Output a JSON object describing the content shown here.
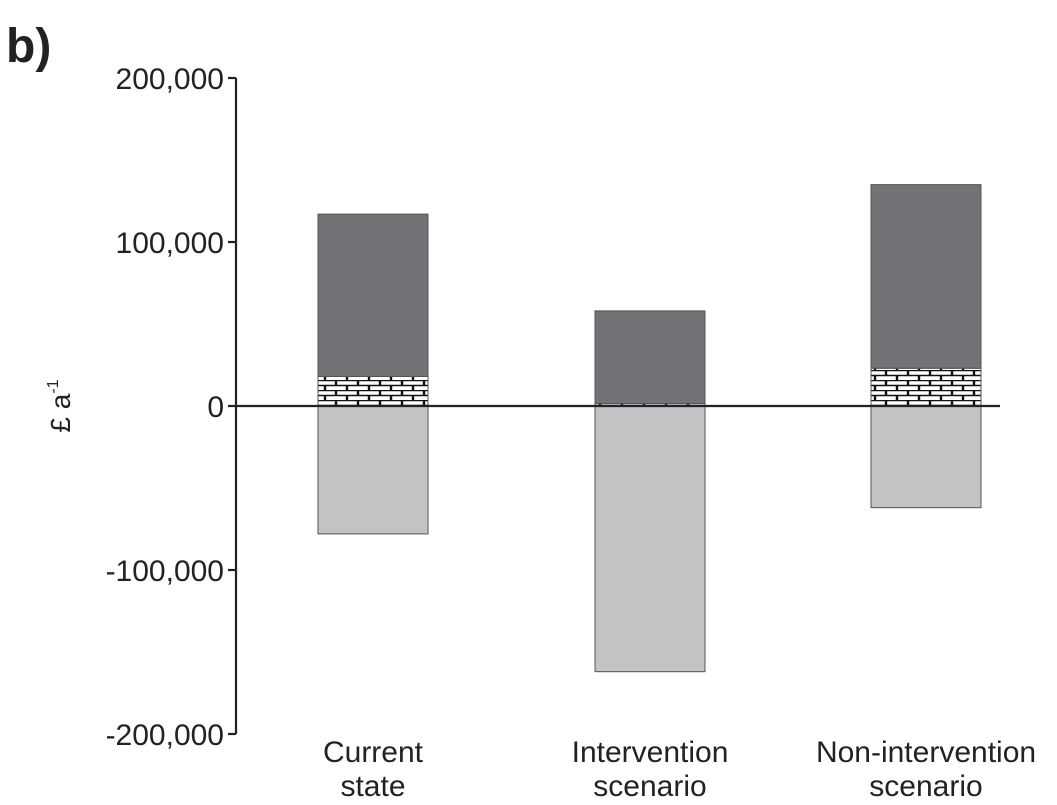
{
  "panel_label": "b)",
  "chart_data": {
    "type": "bar",
    "stacked": true,
    "ylabel_main": "£ a",
    "ylabel_sup": "-1",
    "ylim": [
      -200000,
      200000
    ],
    "yticks": [
      200000,
      100000,
      0,
      -100000,
      -200000
    ],
    "ytick_labels": [
      "200,000",
      "100,000",
      "0",
      "-100,000",
      "-200,000"
    ],
    "categories": [
      [
        "Current",
        "state"
      ],
      [
        "Intervention",
        "scenario"
      ],
      [
        "Non-intervention",
        "scenario"
      ]
    ],
    "series": [
      {
        "color": "#c2c3c5",
        "pattern": "none",
        "values": [
          -78000,
          -162000,
          -62000
        ]
      },
      {
        "color": "#ffffff",
        "pattern": "brick",
        "values": [
          18000,
          1500,
          23000
        ]
      },
      {
        "color": "#727376",
        "pattern": "none",
        "values": [
          99000,
          56500,
          112000
        ]
      }
    ]
  }
}
